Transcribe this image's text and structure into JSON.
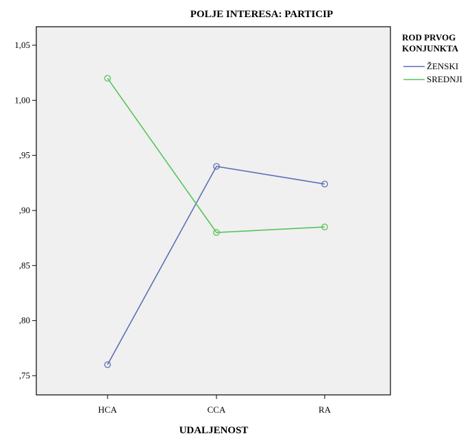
{
  "chart_data": {
    "type": "line",
    "title": "POLJE INTERESA: PARTICIP",
    "xlabel": "UDALJENOST",
    "ylabel": "",
    "categories": [
      "HCA",
      "CCA",
      "RA"
    ],
    "ylim": [
      0.74,
      1.065
    ],
    "yticks": [
      0.75,
      0.8,
      0.85,
      0.9,
      0.95,
      1.0,
      1.05
    ],
    "ytick_labels": [
      ",75",
      ",80",
      ",85",
      ",90",
      ",95",
      "1,00",
      "1,05"
    ],
    "grid": false,
    "legend": {
      "title_lines": [
        "ROD PRVOG",
        "KONJUNKTA"
      ],
      "placement": "right-top"
    },
    "series": [
      {
        "name": "ŽENSKI",
        "color": "#5b6fb5",
        "values": [
          0.76,
          0.94,
          0.924
        ]
      },
      {
        "name": "SREDNJI",
        "color": "#55c45a",
        "values": [
          1.02,
          0.88,
          0.885
        ]
      }
    ],
    "plot_background": "#f0f0f0"
  }
}
